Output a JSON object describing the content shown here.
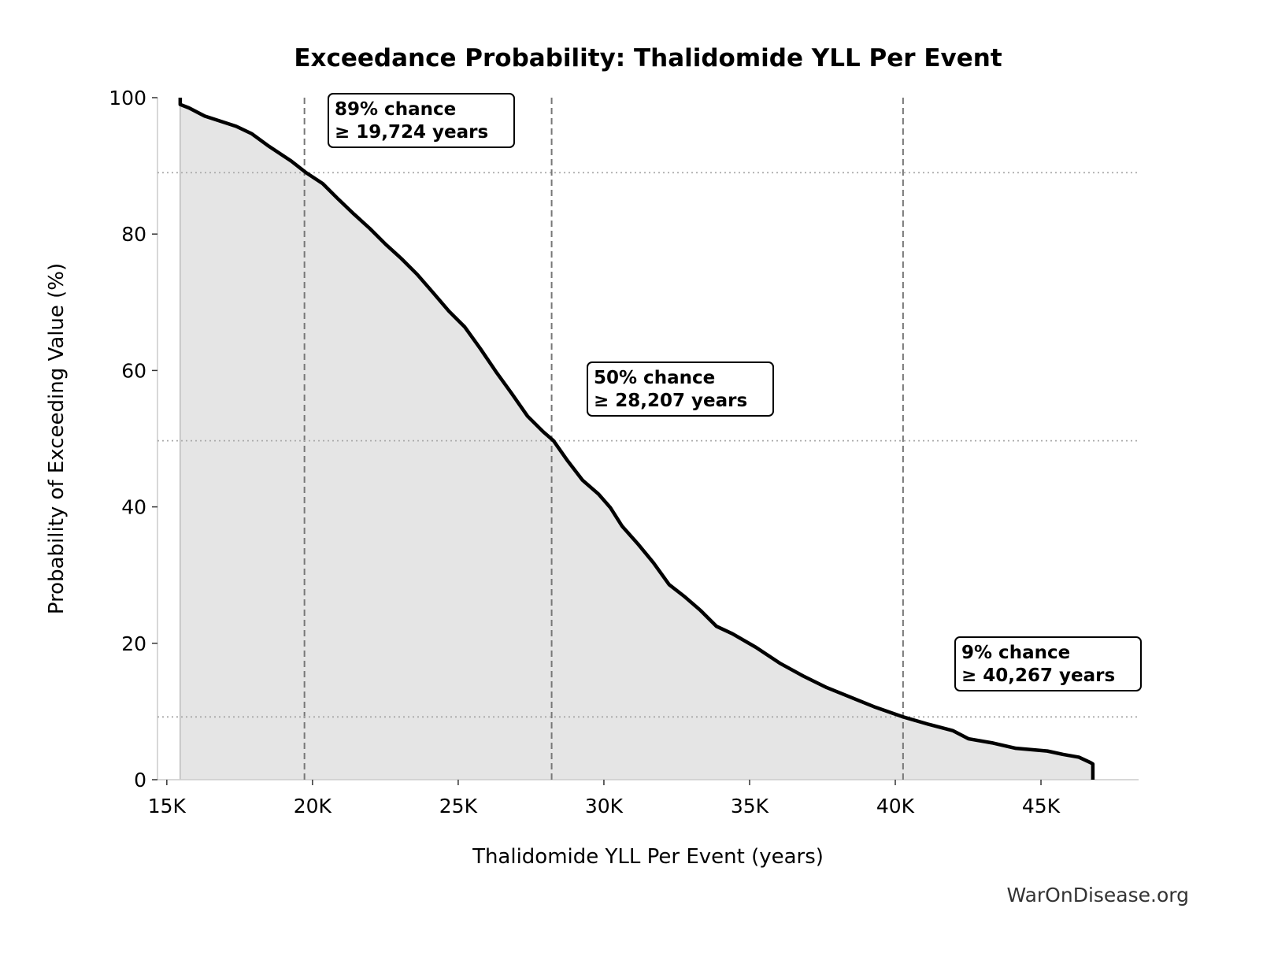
{
  "chart_data": {
    "type": "area",
    "title": "Exceedance Probability: Thalidomide YLL Per Event",
    "xlabel": "Thalidomide YLL Per Event (years)",
    "ylabel": "Probability of Exceeding Value (%)",
    "xlim": [
      14680,
      48350
    ],
    "ylim": [
      0,
      100
    ],
    "xticks": [
      15000,
      20000,
      25000,
      30000,
      35000,
      40000,
      45000
    ],
    "xtick_labels": [
      "15K",
      "20K",
      "25K",
      "30K",
      "35K",
      "40K",
      "45K"
    ],
    "yticks": [
      0,
      20,
      40,
      60,
      80,
      100
    ],
    "ytick_labels": [
      "0",
      "20",
      "40",
      "60",
      "80",
      "100"
    ],
    "grid": false,
    "series": [
      {
        "x": [
          15460,
          15460,
          15760,
          16300,
          17380,
          17920,
          18460,
          19270,
          19780,
          20350,
          20890,
          21430,
          21970,
          22510,
          23050,
          23590,
          24140,
          24680,
          25220,
          25760,
          26300,
          26840,
          27380,
          27920,
          28270,
          28730,
          29270,
          29810,
          30220,
          30620,
          31160,
          31700,
          32240,
          32780,
          33320,
          33860,
          34410,
          35220,
          36030,
          36840,
          37650,
          38460,
          39270,
          40270,
          41160,
          41970,
          42510,
          43320,
          44140,
          45220,
          45760,
          46300,
          46700,
          46780,
          46780
        ],
        "y": [
          100,
          99,
          98.5,
          97.3,
          95.8,
          94.7,
          93.0,
          90.7,
          89.0,
          87.4,
          85.1,
          82.9,
          80.8,
          78.5,
          76.4,
          74.1,
          71.4,
          68.7,
          66.4,
          63.2,
          59.8,
          56.6,
          53.3,
          51.0,
          49.7,
          46.9,
          43.9,
          41.9,
          39.9,
          37.2,
          34.6,
          31.8,
          28.6,
          26.8,
          24.8,
          22.5,
          21.4,
          19.4,
          17.1,
          15.2,
          13.5,
          12.1,
          10.7,
          9.2,
          8.1,
          7.2,
          6.0,
          5.4,
          4.6,
          4.2,
          3.7,
          3.3,
          2.5,
          2.3,
          0
        ]
      }
    ],
    "reference_lines": [
      {
        "x": 19724,
        "y": 89,
        "label_line1": "89% chance",
        "label_line2": "≥ 19,724 years"
      },
      {
        "x": 28207,
        "y": 49.7,
        "label_line1": "50% chance",
        "label_line2": "≥ 28,207 years"
      },
      {
        "x": 40267,
        "y": 9.2,
        "label_line1": "9% chance",
        "label_line2": "≥ 40,267 years"
      }
    ],
    "colors": {
      "line": "#000000",
      "fill": "#e5e5e5",
      "ref": "#777777"
    }
  },
  "watermark": "WarOnDisease.org"
}
